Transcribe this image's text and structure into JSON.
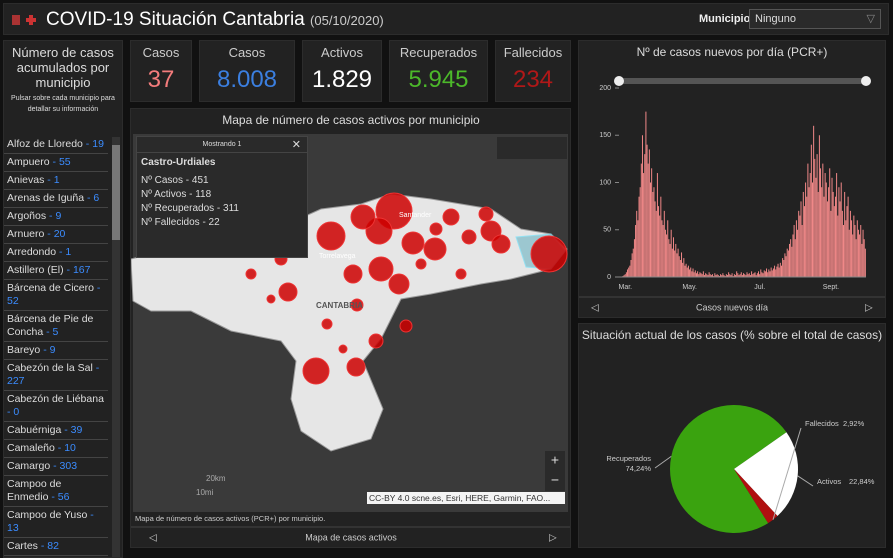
{
  "header": {
    "title": "COVID-19 Situación Cantabria",
    "date": "(05/10/2020)",
    "filter_label": "Municipio",
    "filter_value": "Ninguno"
  },
  "list": {
    "title": "Número de casos acumulados por municipio",
    "subtitle": "Pulsar sobre cada municipio para detallar su información",
    "separator": " - ",
    "items": [
      {
        "name": "Alfoz de Lloredo",
        "value": 19
      },
      {
        "name": "Ampuero",
        "value": 55
      },
      {
        "name": "Anievas",
        "value": 1
      },
      {
        "name": "Arenas de Iguña",
        "value": 6
      },
      {
        "name": "Argoños",
        "value": 9
      },
      {
        "name": "Arnuero",
        "value": 20
      },
      {
        "name": "Arredondo",
        "value": 1
      },
      {
        "name": "Astillero (El)",
        "value": 167
      },
      {
        "name": "Bárcena de Cicero",
        "value": 52
      },
      {
        "name": "Bárcena de Pie de Concha",
        "value": 5
      },
      {
        "name": "Bareyo",
        "value": 9
      },
      {
        "name": "Cabezón de la Sal",
        "value": 227
      },
      {
        "name": "Cabezón de Liébana",
        "value": 0
      },
      {
        "name": "Cabuérniga",
        "value": 39
      },
      {
        "name": "Camaleño",
        "value": 10
      },
      {
        "name": "Camargo",
        "value": 303
      },
      {
        "name": "Campoo de Enmedio",
        "value": 56
      },
      {
        "name": "Campoo de Yuso",
        "value": 13
      },
      {
        "name": "Cartes",
        "value": 82
      }
    ]
  },
  "kpis": [
    {
      "label": "Casos",
      "value": "37",
      "color": "#f47c7c"
    },
    {
      "label": "Casos",
      "value": "8.008",
      "color": "#3b7fe0"
    },
    {
      "label": "Activos",
      "value": "1.829",
      "color": "#ffffff"
    },
    {
      "label": "Recuperados",
      "value": "5.945",
      "color": "#4cb82a"
    },
    {
      "label": "Fallecidos",
      "value": "234",
      "color": "#b01818"
    }
  ],
  "map": {
    "title": "Mapa de número de casos activos por municipio",
    "popup_count": "Mostrando 1",
    "popup_title": "Castro-Urdiales",
    "popup_lines": [
      "Nº Casos - 451",
      "Nº Activos - 118",
      "Nº Recuperados - 311",
      "Nº Fallecidos - 22"
    ],
    "places": [
      "Santander",
      "Torrelavega",
      "CANTABRIA"
    ],
    "scale_km": "20km",
    "scale_mi": "10mi",
    "attribution": "CC-BY 4.0 scne.es, Esri, HERE, Garmin, FAO...",
    "caption": "Mapa de número de casos activos (PCR+) por municipio.",
    "nav": "Mapa de casos activos"
  },
  "chart_data": [
    {
      "type": "bar",
      "title": "Nº de casos nuevos por día (PCR+)",
      "footer": "Casos nuevos día",
      "color": "#f58a8a",
      "ylim": [
        0,
        200
      ],
      "yticks": [
        0,
        50,
        100,
        150,
        200
      ],
      "categories": [
        null,
        null,
        null,
        null,
        null,
        "Mar.",
        null,
        null,
        null,
        null,
        null,
        null,
        null,
        null,
        null,
        null,
        null,
        null,
        null,
        null,
        null,
        null,
        null,
        null,
        null,
        null,
        null,
        null,
        null,
        null,
        null,
        null,
        null,
        null,
        null,
        null,
        null,
        null,
        null,
        null,
        null,
        null,
        null,
        null,
        null,
        null,
        null,
        null,
        null,
        null,
        null,
        null,
        null,
        null,
        null,
        null,
        null,
        null,
        null,
        null,
        null,
        "May.",
        null,
        null,
        null,
        null,
        null,
        null,
        null,
        null,
        null,
        null,
        null,
        null,
        null,
        null,
        null,
        null,
        null,
        null,
        null,
        null,
        null,
        null,
        null,
        null,
        null,
        null,
        null,
        null,
        null,
        null,
        null,
        null,
        null,
        null,
        null,
        null,
        null,
        null,
        null,
        null,
        null,
        null,
        null,
        null,
        null,
        null,
        null,
        null,
        null,
        null,
        null,
        null,
        null,
        null,
        null,
        null,
        null,
        null,
        null,
        null,
        "Jul.",
        null,
        null,
        null,
        null,
        null,
        null,
        null,
        null,
        null,
        null,
        null,
        null,
        null,
        null,
        null,
        null,
        null,
        null,
        null,
        null,
        null,
        null,
        null,
        null,
        null,
        null,
        null,
        null,
        null,
        null,
        null,
        null,
        null,
        null,
        null,
        null,
        null,
        null,
        null,
        null,
        null,
        null,
        null,
        null,
        null,
        null,
        null,
        null,
        null,
        null,
        null,
        null,
        null,
        null,
        null,
        null,
        null,
        null,
        null,
        null,
        null,
        "Sept.",
        null,
        null,
        null,
        null,
        null,
        null,
        null,
        null,
        null,
        null,
        null,
        null,
        null,
        null,
        null,
        null,
        null,
        null,
        null,
        null,
        null,
        null,
        null,
        null,
        null,
        null,
        null,
        null,
        null,
        null
      ],
      "values": [
        0,
        0,
        0,
        1,
        2,
        3,
        5,
        8,
        10,
        12,
        18,
        25,
        30,
        40,
        55,
        70,
        60,
        85,
        95,
        120,
        150,
        110,
        130,
        175,
        140,
        120,
        135,
        100,
        115,
        90,
        95,
        80,
        70,
        110,
        75,
        65,
        85,
        60,
        55,
        70,
        50,
        45,
        60,
        40,
        35,
        50,
        30,
        42,
        28,
        35,
        25,
        30,
        22,
        18,
        26,
        15,
        20,
        12,
        14,
        10,
        12,
        8,
        10,
        6,
        9,
        5,
        7,
        4,
        6,
        3,
        5,
        4,
        3,
        6,
        2,
        4,
        3,
        2,
        5,
        3,
        2,
        3,
        1,
        4,
        2,
        3,
        2,
        1,
        3,
        2,
        4,
        2,
        1,
        3,
        2,
        5,
        3,
        2,
        4,
        1,
        3,
        2,
        6,
        4,
        2,
        3,
        5,
        2,
        4,
        3,
        2,
        5,
        3,
        4,
        2,
        6,
        3,
        4,
        5,
        2,
        4,
        6,
        3,
        8,
        5,
        4,
        7,
        6,
        9,
        5,
        8,
        6,
        10,
        7,
        9,
        12,
        8,
        11,
        14,
        10,
        15,
        12,
        20,
        18,
        25,
        22,
        30,
        28,
        35,
        40,
        32,
        45,
        55,
        40,
        60,
        50,
        70,
        65,
        80,
        55,
        90,
        75,
        100,
        85,
        120,
        95,
        110,
        140,
        100,
        160,
        125,
        105,
        130,
        90,
        150,
        115,
        95,
        120,
        85,
        110,
        100,
        80,
        95,
        115,
        70,
        105,
        90,
        75,
        85,
        110,
        65,
        95,
        80,
        100,
        70,
        55,
        90,
        60,
        75,
        85,
        50,
        70,
        60,
        45,
        65,
        55,
        40,
        60,
        50,
        45,
        55,
        35,
        50,
        40,
        30
      ]
    },
    {
      "type": "pie",
      "title": "Situación actual de los casos (% sobre el total de casos)",
      "categories": [
        "Recuperados",
        "Activos",
        "Fallecidos"
      ],
      "values": [
        74.24,
        22.84,
        2.92
      ],
      "value_labels": [
        "74,24%",
        "22,84%",
        "2,92%"
      ],
      "colors": [
        "#3aa30f",
        "#ffffff",
        "#b01010"
      ]
    }
  ]
}
